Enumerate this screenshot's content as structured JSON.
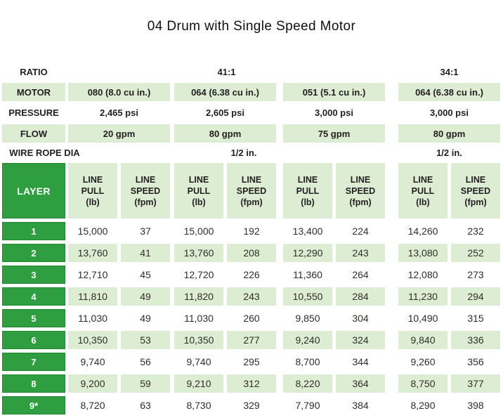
{
  "title": "04 Drum with Single Speed Motor",
  "specs": {
    "ratio": {
      "label": "RATIO",
      "values": [
        "41:1",
        "34:1"
      ]
    },
    "motor": {
      "label": "MOTOR",
      "values": [
        "080 (8.0 cu in.)",
        "064 (6.38 cu in.)",
        "051 (5.1 cu in.)",
        "064 (6.38 cu in.)"
      ]
    },
    "pressure": {
      "label": "PRESSURE",
      "values": [
        "2,465 psi",
        "2,605 psi",
        "3,000 psi",
        "3,000 psi"
      ]
    },
    "flow": {
      "label": "FLOW",
      "values": [
        "20 gpm",
        "80 gpm",
        "75 gpm",
        "80 gpm"
      ]
    },
    "wire_rope_dia": {
      "label": "WIRE ROPE DIA",
      "values": [
        "1/2 in.",
        "1/2 in."
      ]
    }
  },
  "table": {
    "corner": "LAYER",
    "col_headers": [
      {
        "lines": [
          "LINE",
          "PULL",
          "(lb)"
        ]
      },
      {
        "lines": [
          "LINE",
          "SPEED",
          "(fpm)"
        ]
      },
      {
        "lines": [
          "LINE",
          "PULL",
          "(lb)"
        ]
      },
      {
        "lines": [
          "LINE",
          "SPEED",
          "(fpm)"
        ]
      },
      {
        "lines": [
          "LINE",
          "PULL",
          "(lb)"
        ]
      },
      {
        "lines": [
          "LINE",
          "SPEED",
          "(fpm)"
        ]
      },
      {
        "lines": [
          "LINE",
          "PULL",
          "(lb)"
        ]
      },
      {
        "lines": [
          "LINE",
          "SPEED",
          "(fpm)"
        ]
      }
    ],
    "rows": [
      {
        "layer": "1",
        "values": [
          "15,000",
          "37",
          "15,000",
          "192",
          "13,400",
          "224",
          "14,260",
          "232"
        ]
      },
      {
        "layer": "2",
        "values": [
          "13,760",
          "41",
          "13,760",
          "208",
          "12,290",
          "243",
          "13,080",
          "252"
        ]
      },
      {
        "layer": "3",
        "values": [
          "12,710",
          "45",
          "12,720",
          "226",
          "11,360",
          "264",
          "12,080",
          "273"
        ]
      },
      {
        "layer": "4",
        "values": [
          "11,810",
          "49",
          "11,820",
          "243",
          "10,550",
          "284",
          "11,230",
          "294"
        ]
      },
      {
        "layer": "5",
        "values": [
          "11,030",
          "49",
          "11,030",
          "260",
          "9,850",
          "304",
          "10,490",
          "315"
        ]
      },
      {
        "layer": "6",
        "values": [
          "10,350",
          "53",
          "10,350",
          "277",
          "9,240",
          "324",
          "9,840",
          "336"
        ]
      },
      {
        "layer": "7",
        "values": [
          "9,740",
          "56",
          "9,740",
          "295",
          "8,700",
          "344",
          "9,260",
          "356"
        ]
      },
      {
        "layer": "8",
        "values": [
          "9,200",
          "59",
          "9,210",
          "312",
          "8,220",
          "364",
          "8,750",
          "377"
        ]
      },
      {
        "layer": "9*",
        "values": [
          "8,720",
          "63",
          "8,730",
          "329",
          "7,790",
          "384",
          "8,290",
          "398"
        ]
      }
    ]
  },
  "colors": {
    "dark_green": "#2f9e41",
    "dark_green_border": "#1f8632",
    "light_green": "#dcedd3",
    "text_dark": "#231f20",
    "number_text": "#312d29"
  }
}
